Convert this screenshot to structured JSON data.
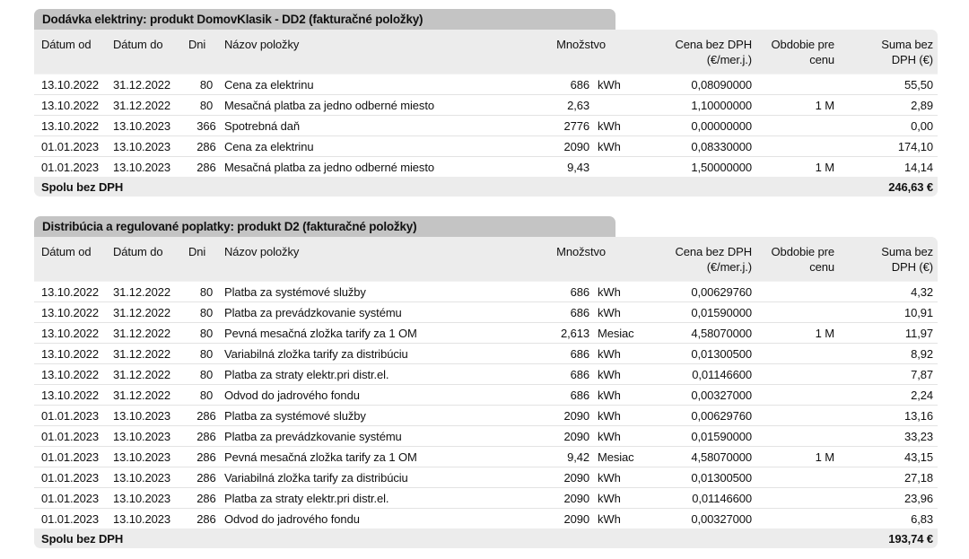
{
  "colors": {
    "title_bar_bg": "#c4c4c4",
    "header_bg": "#ececec",
    "footer_bg": "#ececec",
    "row_separator": "#e3e3e3",
    "text": "#111111"
  },
  "column_headers": {
    "datum_od": "Dátum od",
    "datum_do": "Dátum do",
    "dni": "Dni",
    "nazov": "Názov položky",
    "mnozstvo": "Množstvo",
    "cena_line1": "Cena bez DPH",
    "cena_line2": "(€/mer.j.)",
    "obdobie_line1": "Obdobie pre",
    "obdobie_line2": "cenu",
    "suma_line1": "Suma bez",
    "suma_line2": "DPH (€)"
  },
  "tables": [
    {
      "title": "Dodávka elektriny: produkt DomovKlasik - DD2 (fakturačné položky)",
      "rows": [
        [
          "13.10.2022",
          "31.12.2022",
          "80",
          "Cena za elektrinu",
          "686",
          "kWh",
          "0,08090000",
          "",
          "55,50"
        ],
        [
          "13.10.2022",
          "31.12.2022",
          "80",
          "Mesačná platba za jedno odberné miesto",
          "2,63",
          "",
          "1,10000000",
          "1 M",
          "2,89"
        ],
        [
          "13.10.2022",
          "13.10.2023",
          "366",
          "Spotrebná daň",
          "2776",
          "kWh",
          "0,00000000",
          "",
          "0,00"
        ],
        [
          "01.01.2023",
          "13.10.2023",
          "286",
          "Cena za elektrinu",
          "2090",
          "kWh",
          "0,08330000",
          "",
          "174,10"
        ],
        [
          "01.01.2023",
          "13.10.2023",
          "286",
          "Mesačná platba za jedno odberné miesto",
          "9,43",
          "",
          "1,50000000",
          "1 M",
          "14,14"
        ]
      ],
      "footer_label": "Spolu bez DPH",
      "footer_total": "246,63 €"
    },
    {
      "title": "Distribúcia a regulované poplatky: produkt D2 (fakturačné položky)",
      "rows": [
        [
          "13.10.2022",
          "31.12.2022",
          "80",
          "Platba za systémové služby",
          "686",
          "kWh",
          "0,00629760",
          "",
          "4,32"
        ],
        [
          "13.10.2022",
          "31.12.2022",
          "80",
          "Platba za prevádzkovanie systému",
          "686",
          "kWh",
          "0,01590000",
          "",
          "10,91"
        ],
        [
          "13.10.2022",
          "31.12.2022",
          "80",
          "Pevná mesačná zložka tarify za 1 OM",
          "2,613",
          "Mesiac",
          "4,58070000",
          "1 M",
          "11,97"
        ],
        [
          "13.10.2022",
          "31.12.2022",
          "80",
          "Variabilná zložka tarify za distribúciu",
          "686",
          "kWh",
          "0,01300500",
          "",
          "8,92"
        ],
        [
          "13.10.2022",
          "31.12.2022",
          "80",
          "Platba za straty elektr.pri distr.el.",
          "686",
          "kWh",
          "0,01146600",
          "",
          "7,87"
        ],
        [
          "13.10.2022",
          "31.12.2022",
          "80",
          "Odvod do jadrového fondu",
          "686",
          "kWh",
          "0,00327000",
          "",
          "2,24"
        ],
        [
          "01.01.2023",
          "13.10.2023",
          "286",
          "Platba za systémové služby",
          "2090",
          "kWh",
          "0,00629760",
          "",
          "13,16"
        ],
        [
          "01.01.2023",
          "13.10.2023",
          "286",
          "Platba za prevádzkovanie systému",
          "2090",
          "kWh",
          "0,01590000",
          "",
          "33,23"
        ],
        [
          "01.01.2023",
          "13.10.2023",
          "286",
          "Pevná mesačná zložka tarify za 1 OM",
          "9,42",
          "Mesiac",
          "4,58070000",
          "1 M",
          "43,15"
        ],
        [
          "01.01.2023",
          "13.10.2023",
          "286",
          "Variabilná zložka tarify za distribúciu",
          "2090",
          "kWh",
          "0,01300500",
          "",
          "27,18"
        ],
        [
          "01.01.2023",
          "13.10.2023",
          "286",
          "Platba za straty elektr.pri distr.el.",
          "2090",
          "kWh",
          "0,01146600",
          "",
          "23,96"
        ],
        [
          "01.01.2023",
          "13.10.2023",
          "286",
          "Odvod do jadrového fondu",
          "2090",
          "kWh",
          "0,00327000",
          "",
          "6,83"
        ]
      ],
      "footer_label": "Spolu bez DPH",
      "footer_total": "193,74 €"
    }
  ]
}
